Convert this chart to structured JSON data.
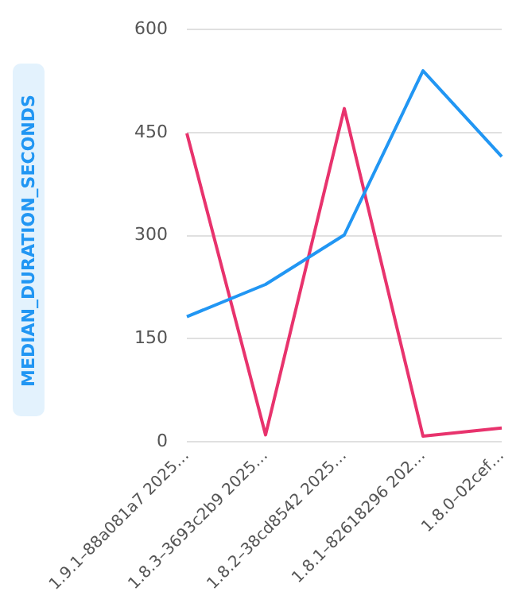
{
  "chart_data": {
    "type": "line",
    "ylabel": "MEDIAN_DURATION_SECONDS",
    "categories": [
      "1.9.1–88a081a7 2025…",
      "1.8.3–3693c2b9 2025…",
      "1.8.2–38cd8542 2025…",
      "1.8.1–82618296 202…",
      "1.8.0–02cef…"
    ],
    "series": [
      {
        "color": "#2196f3",
        "values": [
          182,
          229,
          301,
          540,
          415
        ]
      },
      {
        "color": "#e8336d",
        "values": [
          449,
          10,
          485,
          8,
          20
        ]
      }
    ],
    "ylim": [
      0,
      600
    ],
    "yticks": [
      0,
      150,
      300,
      450,
      600
    ],
    "grid": "y",
    "legend": false,
    "marker": "none"
  }
}
